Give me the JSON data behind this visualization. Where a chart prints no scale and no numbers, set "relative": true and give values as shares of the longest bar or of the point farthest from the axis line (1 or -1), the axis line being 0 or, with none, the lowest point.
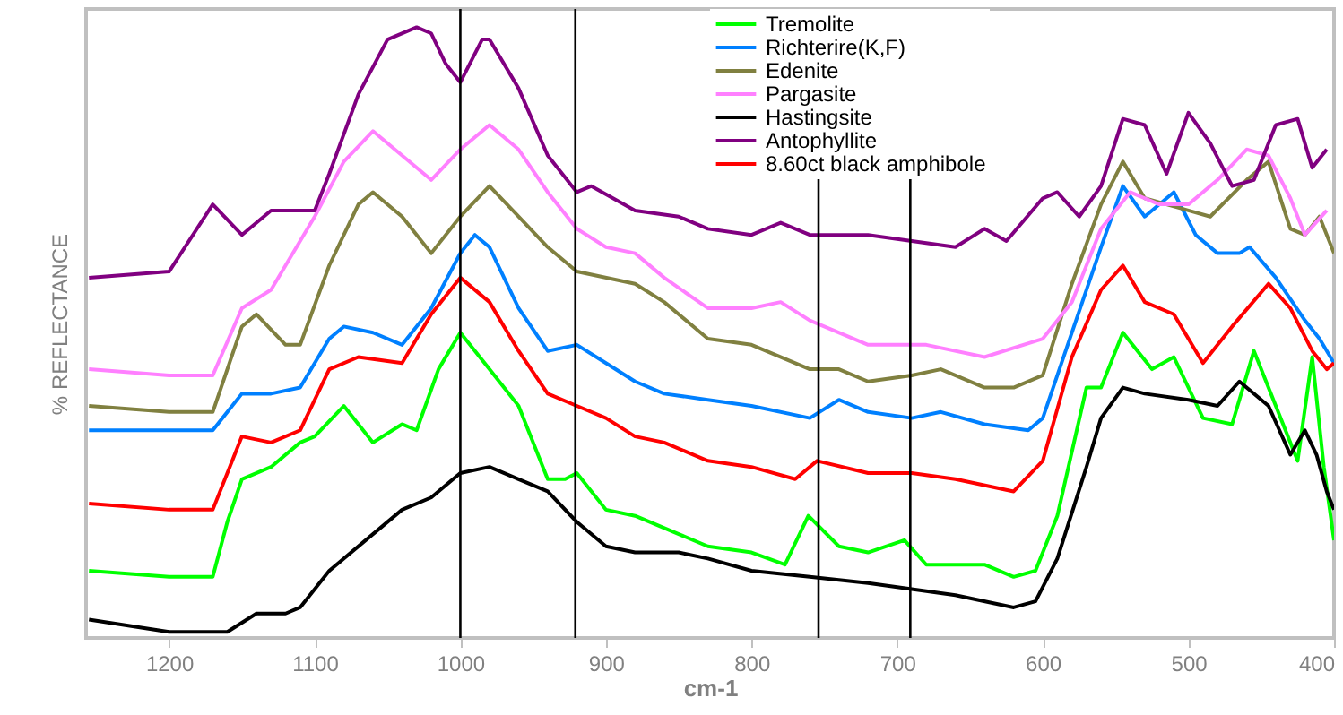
{
  "chart_data": {
    "type": "line",
    "relative": true,
    "ylabel": "% REFLECTANCE",
    "xlabel": "cm-1",
    "xlim": [
      1257,
      400
    ],
    "xticks": [
      1200,
      1100,
      1000,
      900,
      800,
      700,
      600,
      500,
      400
    ],
    "tick_labels": "x",
    "grid": false,
    "legend": "top",
    "line_style": "solid",
    "marker": "none",
    "ref_lines": [
      {
        "axis": "x",
        "value": 1000,
        "color": "#000000"
      },
      {
        "axis": "x",
        "value": 921,
        "color": "#000000"
      },
      {
        "axis": "x",
        "value": 754,
        "color": "#000000"
      },
      {
        "axis": "x",
        "value": 691,
        "color": "#000000"
      }
    ],
    "series": [
      {
        "name": "Tremolite",
        "color": "#00ff00",
        "x": [
          1255,
          1200,
          1170,
          1160,
          1150,
          1130,
          1110,
          1100,
          1080,
          1060,
          1040,
          1030,
          1015,
          1000,
          980,
          960,
          940,
          928,
          920,
          900,
          880,
          850,
          830,
          800,
          777,
          761,
          740,
          720,
          695,
          680,
          640,
          620,
          605,
          590,
          570,
          560,
          545,
          525,
          510,
          490,
          470,
          455,
          440,
          425,
          415,
          407,
          400
        ],
        "values": [
          0.11,
          0.1,
          0.1,
          0.19,
          0.26,
          0.28,
          0.32,
          0.33,
          0.38,
          0.32,
          0.35,
          0.34,
          0.44,
          0.5,
          0.44,
          0.38,
          0.26,
          0.26,
          0.27,
          0.21,
          0.2,
          0.17,
          0.15,
          0.14,
          0.12,
          0.2,
          0.15,
          0.14,
          0.16,
          0.12,
          0.12,
          0.1,
          0.11,
          0.2,
          0.41,
          0.41,
          0.5,
          0.44,
          0.46,
          0.36,
          0.35,
          0.47,
          0.38,
          0.29,
          0.46,
          0.28,
          0.16
        ]
      },
      {
        "name": "Richterire(K,F)",
        "color": "#0080ff",
        "x": [
          1255,
          1200,
          1170,
          1150,
          1130,
          1110,
          1090,
          1080,
          1060,
          1040,
          1020,
          1000,
          990,
          980,
          960,
          940,
          920,
          900,
          880,
          860,
          830,
          800,
          760,
          740,
          720,
          690,
          670,
          640,
          610,
          600,
          580,
          560,
          545,
          530,
          510,
          495,
          480,
          465,
          458,
          440,
          420,
          410,
          400
        ],
        "values": [
          0.34,
          0.34,
          0.34,
          0.4,
          0.4,
          0.41,
          0.49,
          0.51,
          0.5,
          0.48,
          0.54,
          0.63,
          0.66,
          0.64,
          0.54,
          0.47,
          0.48,
          0.45,
          0.42,
          0.4,
          0.39,
          0.38,
          0.36,
          0.39,
          0.37,
          0.36,
          0.37,
          0.35,
          0.34,
          0.36,
          0.5,
          0.64,
          0.74,
          0.69,
          0.73,
          0.66,
          0.63,
          0.63,
          0.64,
          0.59,
          0.52,
          0.49,
          0.45
        ]
      },
      {
        "name": "Edenite",
        "color": "#808040",
        "x": [
          1255,
          1200,
          1170,
          1150,
          1140,
          1120,
          1110,
          1090,
          1070,
          1060,
          1040,
          1020,
          1000,
          980,
          960,
          940,
          920,
          880,
          860,
          830,
          800,
          760,
          740,
          720,
          690,
          670,
          640,
          620,
          600,
          580,
          560,
          545,
          530,
          500,
          485,
          460,
          445,
          430,
          420,
          410,
          400
        ],
        "values": [
          0.38,
          0.37,
          0.37,
          0.51,
          0.53,
          0.48,
          0.48,
          0.61,
          0.71,
          0.73,
          0.69,
          0.63,
          0.69,
          0.74,
          0.69,
          0.64,
          0.6,
          0.58,
          0.55,
          0.49,
          0.48,
          0.44,
          0.44,
          0.42,
          0.43,
          0.44,
          0.41,
          0.41,
          0.43,
          0.58,
          0.71,
          0.78,
          0.72,
          0.7,
          0.69,
          0.75,
          0.78,
          0.67,
          0.66,
          0.69,
          0.63
        ]
      },
      {
        "name": "Pargasite",
        "color": "#ff80ff",
        "x": [
          1255,
          1200,
          1170,
          1150,
          1130,
          1100,
          1080,
          1060,
          1040,
          1020,
          1000,
          980,
          960,
          940,
          920,
          900,
          880,
          860,
          830,
          800,
          780,
          760,
          720,
          680,
          640,
          600,
          580,
          560,
          540,
          520,
          500,
          480,
          460,
          445,
          430,
          420,
          405
        ],
        "values": [
          0.44,
          0.43,
          0.43,
          0.54,
          0.57,
          0.69,
          0.78,
          0.83,
          0.79,
          0.75,
          0.8,
          0.84,
          0.8,
          0.73,
          0.67,
          0.64,
          0.63,
          0.59,
          0.54,
          0.54,
          0.55,
          0.52,
          0.48,
          0.48,
          0.46,
          0.49,
          0.55,
          0.67,
          0.73,
          0.71,
          0.71,
          0.75,
          0.8,
          0.79,
          0.72,
          0.66,
          0.7
        ]
      },
      {
        "name": "Hastingsite",
        "color": "#000000",
        "x": [
          1255,
          1200,
          1170,
          1160,
          1140,
          1120,
          1110,
          1090,
          1060,
          1040,
          1020,
          1000,
          980,
          960,
          940,
          920,
          900,
          880,
          850,
          830,
          800,
          760,
          720,
          690,
          660,
          620,
          605,
          590,
          570,
          560,
          545,
          530,
          500,
          480,
          465,
          445,
          430,
          420,
          412,
          405,
          400
        ],
        "values": [
          0.03,
          0.01,
          0.01,
          0.01,
          0.04,
          0.04,
          0.05,
          0.11,
          0.17,
          0.21,
          0.23,
          0.27,
          0.28,
          0.26,
          0.24,
          0.19,
          0.15,
          0.14,
          0.14,
          0.13,
          0.11,
          0.1,
          0.09,
          0.08,
          0.07,
          0.05,
          0.06,
          0.13,
          0.28,
          0.36,
          0.41,
          0.4,
          0.39,
          0.38,
          0.42,
          0.38,
          0.3,
          0.34,
          0.3,
          0.24,
          0.21
        ]
      },
      {
        "name": "Antophyllite",
        "color": "#800080",
        "x": [
          1255,
          1200,
          1170,
          1150,
          1130,
          1110,
          1100,
          1090,
          1070,
          1050,
          1030,
          1020,
          1010,
          1000,
          985,
          980,
          960,
          940,
          920,
          910,
          880,
          850,
          830,
          800,
          780,
          760,
          720,
          690,
          660,
          640,
          625,
          600,
          590,
          575,
          560,
          545,
          530,
          515,
          500,
          485,
          470,
          455,
          440,
          425,
          415,
          405
        ],
        "values": [
          0.59,
          0.6,
          0.71,
          0.66,
          0.7,
          0.7,
          0.7,
          0.76,
          0.89,
          0.98,
          1.0,
          0.99,
          0.94,
          0.91,
          0.98,
          0.98,
          0.9,
          0.79,
          0.73,
          0.74,
          0.7,
          0.69,
          0.67,
          0.66,
          0.68,
          0.66,
          0.66,
          0.65,
          0.64,
          0.67,
          0.65,
          0.72,
          0.73,
          0.69,
          0.74,
          0.85,
          0.84,
          0.76,
          0.86,
          0.81,
          0.74,
          0.75,
          0.84,
          0.85,
          0.77,
          0.8
        ]
      },
      {
        "name": "8.60ct black amphibole",
        "color": "#ff0000",
        "x": [
          1255,
          1200,
          1170,
          1150,
          1130,
          1110,
          1090,
          1070,
          1040,
          1020,
          1000,
          980,
          960,
          940,
          920,
          900,
          880,
          860,
          830,
          800,
          770,
          755,
          720,
          690,
          660,
          620,
          600,
          580,
          560,
          545,
          530,
          510,
          490,
          470,
          445,
          430,
          415,
          405,
          400
        ],
        "values": [
          0.22,
          0.21,
          0.21,
          0.33,
          0.32,
          0.34,
          0.44,
          0.46,
          0.45,
          0.53,
          0.59,
          0.55,
          0.47,
          0.4,
          0.38,
          0.36,
          0.33,
          0.32,
          0.29,
          0.28,
          0.26,
          0.29,
          0.27,
          0.27,
          0.26,
          0.24,
          0.29,
          0.46,
          0.57,
          0.61,
          0.55,
          0.53,
          0.45,
          0.51,
          0.58,
          0.54,
          0.47,
          0.44,
          0.45
        ]
      }
    ]
  }
}
